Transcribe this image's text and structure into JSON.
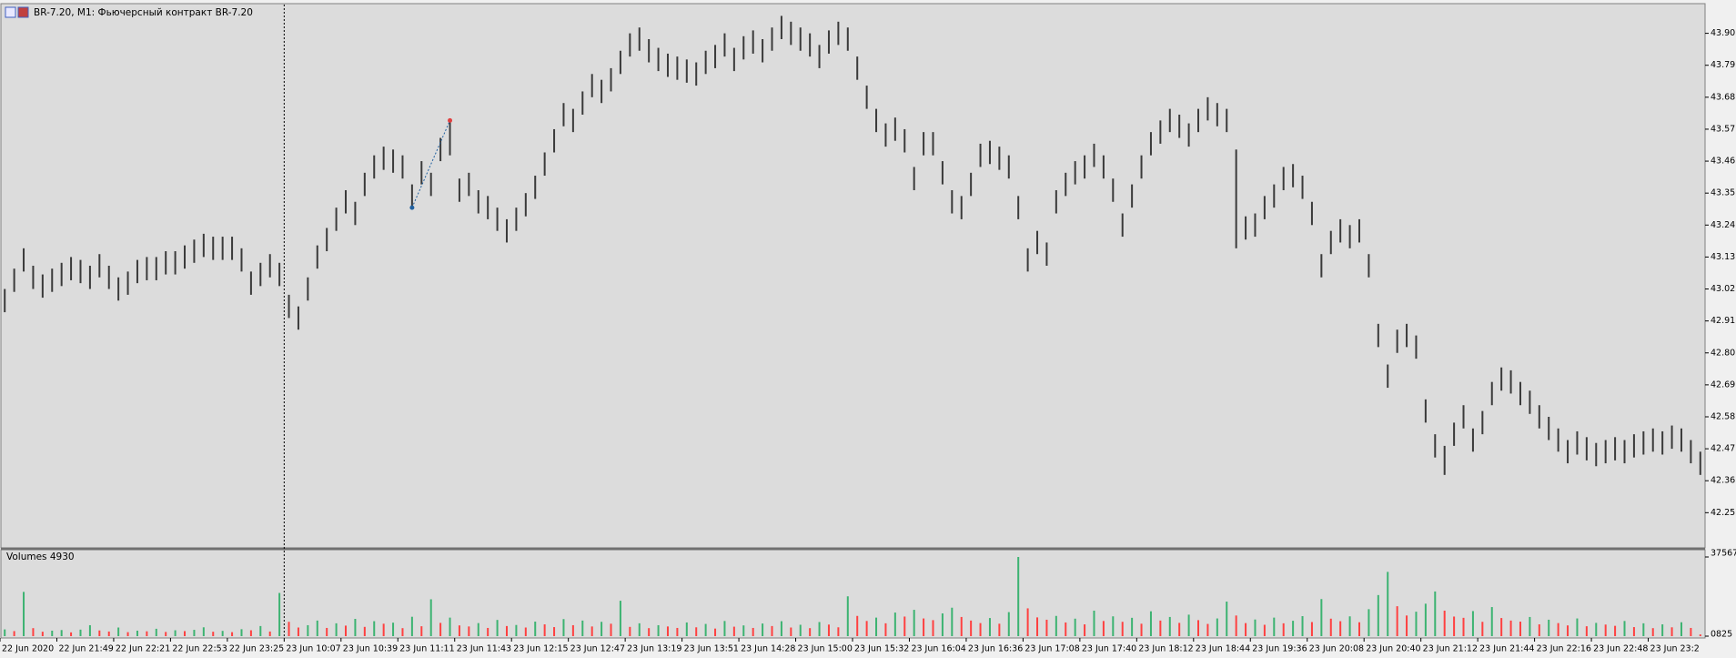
{
  "chart_data": [
    {
      "type": "ohlc",
      "title": "BR-7.20, M1:  Фьючерсный контракт BR-7.20",
      "color": "#3a3a3a",
      "categories": [
        "22 Jun 2020",
        null,
        null,
        null,
        null,
        null,
        "22 Jun 21:49",
        null,
        null,
        null,
        null,
        null,
        "22 Jun 22:21",
        null,
        null,
        null,
        null,
        null,
        "22 Jun 22:53",
        null,
        null,
        null,
        null,
        null,
        "22 Jun 23:25",
        null,
        null,
        null,
        null,
        null,
        "23 Jun 10:07",
        null,
        null,
        null,
        null,
        null,
        "23 Jun 10:39",
        null,
        null,
        null,
        null,
        null,
        "23 Jun 11:11",
        null,
        null,
        null,
        null,
        null,
        "23 Jun 11:43",
        null,
        null,
        null,
        null,
        null,
        "23 Jun 12:15",
        null,
        null,
        null,
        null,
        null,
        "23 Jun 12:47",
        null,
        null,
        null,
        null,
        null,
        "23 Jun 13:19",
        null,
        null,
        null,
        null,
        null,
        "23 Jun 13:51",
        null,
        null,
        null,
        null,
        null,
        "23 Jun 14:28",
        null,
        null,
        null,
        null,
        null,
        "23 Jun 15:00",
        null,
        null,
        null,
        null,
        null,
        "23 Jun 15:32",
        null,
        null,
        null,
        null,
        null,
        "23 Jun 16:04",
        null,
        null,
        null,
        null,
        null,
        "23 Jun 16:36",
        null,
        null,
        null,
        null,
        null,
        "23 Jun 17:08",
        null,
        null,
        null,
        null,
        null,
        "23 Jun 17:40",
        null,
        null,
        null,
        null,
        null,
        "23 Jun 18:12",
        null,
        null,
        null,
        null,
        null,
        "23 Jun 18:44",
        null,
        null,
        null,
        null,
        null,
        "23 Jun 19:36",
        null,
        null,
        null,
        null,
        null,
        "23 Jun 20:08",
        null,
        null,
        null,
        null,
        null,
        "23 Jun 20:40",
        null,
        null,
        null,
        null,
        null,
        "23 Jun 21:12",
        null,
        null,
        null,
        null,
        null,
        "23 Jun 21:44",
        null,
        null,
        null,
        null,
        null,
        "23 Jun 22:16",
        null,
        null,
        null,
        null,
        null,
        "23 Jun 22:48",
        null,
        null,
        null,
        null,
        null,
        "23 Jun 23:2",
        null,
        null,
        null,
        null,
        null
      ],
      "high": [
        43.02,
        43.09,
        43.16,
        43.1,
        43.07,
        43.09,
        43.11,
        43.13,
        43.12,
        43.1,
        43.14,
        43.1,
        43.06,
        43.08,
        43.12,
        43.13,
        43.13,
        43.15,
        43.15,
        43.17,
        43.19,
        43.21,
        43.2,
        43.2,
        43.2,
        43.16,
        43.08,
        43.11,
        43.14,
        43.11,
        43.0,
        42.96,
        43.06,
        43.17,
        43.23,
        43.3,
        43.36,
        43.32,
        43.42,
        43.48,
        43.51,
        43.5,
        43.48,
        43.38,
        43.46,
        43.42,
        43.54,
        43.6,
        43.4,
        43.42,
        43.36,
        43.34,
        43.3,
        43.26,
        43.3,
        43.35,
        43.41,
        43.49,
        43.57,
        43.66,
        43.64,
        43.7,
        43.76,
        43.74,
        43.78,
        43.84,
        43.9,
        43.92,
        43.88,
        43.85,
        43.83,
        43.82,
        43.81,
        43.8,
        43.84,
        43.86,
        43.9,
        43.85,
        43.89,
        43.91,
        43.88,
        43.92,
        43.96,
        43.94,
        43.92,
        43.9,
        43.86,
        43.91,
        43.94,
        43.92,
        43.82,
        43.72,
        43.64,
        43.59,
        43.61,
        43.57,
        43.44,
        43.56,
        43.56,
        43.46,
        43.36,
        43.34,
        43.42,
        43.52,
        43.53,
        43.51,
        43.48,
        43.34,
        43.16,
        43.22,
        43.18,
        43.36,
        43.42,
        43.46,
        43.48,
        43.52,
        43.48,
        43.4,
        43.28,
        43.38,
        43.48,
        43.56,
        43.6,
        43.64,
        43.62,
        43.59,
        43.64,
        43.68,
        43.66,
        43.64,
        43.5,
        43.27,
        43.28,
        43.34,
        43.38,
        43.44,
        43.45,
        43.41,
        43.32,
        43.14,
        43.22,
        43.26,
        43.24,
        43.26,
        43.14,
        42.9,
        42.76,
        42.88,
        42.9,
        42.86,
        42.64,
        42.52,
        42.48,
        42.56,
        42.62,
        42.54,
        42.6,
        42.7,
        42.75,
        42.74,
        42.7,
        42.67,
        42.62,
        42.58,
        42.54,
        42.5,
        42.53,
        42.51,
        42.49,
        42.5,
        42.51,
        42.5,
        42.52,
        42.53,
        42.54,
        42.53,
        42.55,
        42.54,
        42.5,
        42.46
      ],
      "low": [
        42.94,
        43.01,
        43.08,
        43.02,
        42.99,
        43.01,
        43.03,
        43.05,
        43.04,
        43.02,
        43.06,
        43.02,
        42.98,
        43.0,
        43.04,
        43.05,
        43.05,
        43.07,
        43.07,
        43.09,
        43.11,
        43.13,
        43.12,
        43.12,
        43.12,
        43.08,
        43.0,
        43.03,
        43.06,
        43.03,
        42.92,
        42.88,
        42.98,
        43.09,
        43.15,
        43.22,
        43.28,
        43.24,
        43.34,
        43.4,
        43.43,
        43.42,
        43.4,
        43.3,
        43.38,
        43.34,
        43.46,
        43.48,
        43.32,
        43.34,
        43.28,
        43.26,
        43.22,
        43.18,
        43.22,
        43.27,
        43.33,
        43.41,
        43.49,
        43.58,
        43.56,
        43.62,
        43.68,
        43.66,
        43.7,
        43.76,
        43.82,
        43.84,
        43.8,
        43.77,
        43.75,
        43.74,
        43.73,
        43.72,
        43.76,
        43.78,
        43.82,
        43.77,
        43.81,
        43.83,
        43.8,
        43.84,
        43.88,
        43.86,
        43.84,
        43.82,
        43.78,
        43.83,
        43.86,
        43.84,
        43.74,
        43.64,
        43.56,
        43.51,
        43.53,
        43.49,
        43.36,
        43.48,
        43.48,
        43.38,
        43.28,
        43.26,
        43.34,
        43.44,
        43.45,
        43.43,
        43.4,
        43.26,
        43.08,
        43.14,
        43.1,
        43.28,
        43.34,
        43.38,
        43.4,
        43.44,
        43.4,
        43.32,
        43.2,
        43.3,
        43.4,
        43.48,
        43.52,
        43.56,
        43.54,
        43.51,
        43.56,
        43.6,
        43.58,
        43.56,
        43.16,
        43.19,
        43.2,
        43.26,
        43.3,
        43.36,
        43.37,
        43.33,
        43.24,
        43.06,
        43.14,
        43.18,
        43.16,
        43.18,
        43.06,
        42.82,
        42.68,
        42.8,
        42.82,
        42.78,
        42.56,
        42.44,
        42.38,
        42.48,
        42.54,
        42.46,
        42.52,
        42.62,
        42.67,
        42.66,
        42.62,
        42.59,
        42.54,
        42.5,
        42.46,
        42.42,
        42.45,
        42.43,
        42.41,
        42.42,
        42.43,
        42.42,
        42.44,
        42.45,
        42.46,
        42.45,
        42.47,
        42.46,
        42.42,
        42.38
      ],
      "ylim": [
        42.132,
        43.999
      ],
      "yticks": [
        42.25,
        42.36,
        42.47,
        42.58,
        42.69,
        {
          "value": 42.8,
          "label": "42.80"
        },
        42.91,
        43.02,
        43.13,
        43.24,
        43.35,
        43.46,
        43.57,
        43.68,
        43.79,
        {
          "value": 43.9,
          "label": "43.90"
        }
      ]
    },
    {
      "type": "bar",
      "title": "Volumes 4930",
      "up_color": "#3cb371",
      "down_color": "#ff4040",
      "values": [
        3200,
        2400,
        21000,
        3800,
        2100,
        2600,
        2900,
        1800,
        3100,
        5200,
        2700,
        2200,
        4100,
        1900,
        2600,
        2300,
        3500,
        2000,
        2800,
        2400,
        3000,
        4200,
        2100,
        2500,
        1900,
        3300,
        2800,
        4800,
        2200,
        20500,
        6800,
        4100,
        5200,
        7400,
        3900,
        6100,
        5000,
        8200,
        4400,
        7100,
        5900,
        6400,
        3800,
        9200,
        4700,
        17500,
        6300,
        8800,
        5100,
        4600,
        6200,
        3900,
        7700,
        4800,
        5300,
        4100,
        6900,
        5600,
        4300,
        8100,
        5200,
        7400,
        4600,
        6800,
        5900,
        16800,
        4400,
        6100,
        3800,
        5200,
        4600,
        3900,
        6500,
        4200,
        5800,
        3600,
        7200,
        4500,
        5100,
        3900,
        6000,
        4800,
        7100,
        4100,
        5400,
        3800,
        6700,
        5500,
        4200,
        18900,
        9600,
        7200,
        8800,
        6100,
        11200,
        9300,
        12500,
        8400,
        7600,
        10800,
        13500,
        9100,
        7400,
        6200,
        8600,
        5900,
        11400,
        37567,
        13200,
        8900,
        7800,
        9600,
        6500,
        8300,
        5600,
        12100,
        7200,
        9400,
        6800,
        8700,
        5900,
        11800,
        7400,
        9100,
        6300,
        10200,
        7600,
        5800,
        8400,
        16400,
        9800,
        6200,
        7900,
        5400,
        8800,
        6100,
        7300,
        9500,
        6700,
        17600,
        8300,
        7100,
        9400,
        6600,
        12800,
        19500,
        30500,
        14200,
        9800,
        11600,
        15400,
        21200,
        12100,
        9300,
        8700,
        11900,
        6800,
        13800,
        8600,
        7400,
        6900,
        9100,
        5600,
        7800,
        6200,
        5100,
        8400,
        4700,
        6300,
        5500,
        4900,
        7200,
        4300,
        6100,
        3800,
        5600,
        4200,
        6600,
        3900,
        825
      ],
      "ylim": [
        0,
        37567
      ],
      "yticks": [
        0,
        37567
      ]
    }
  ]
}
